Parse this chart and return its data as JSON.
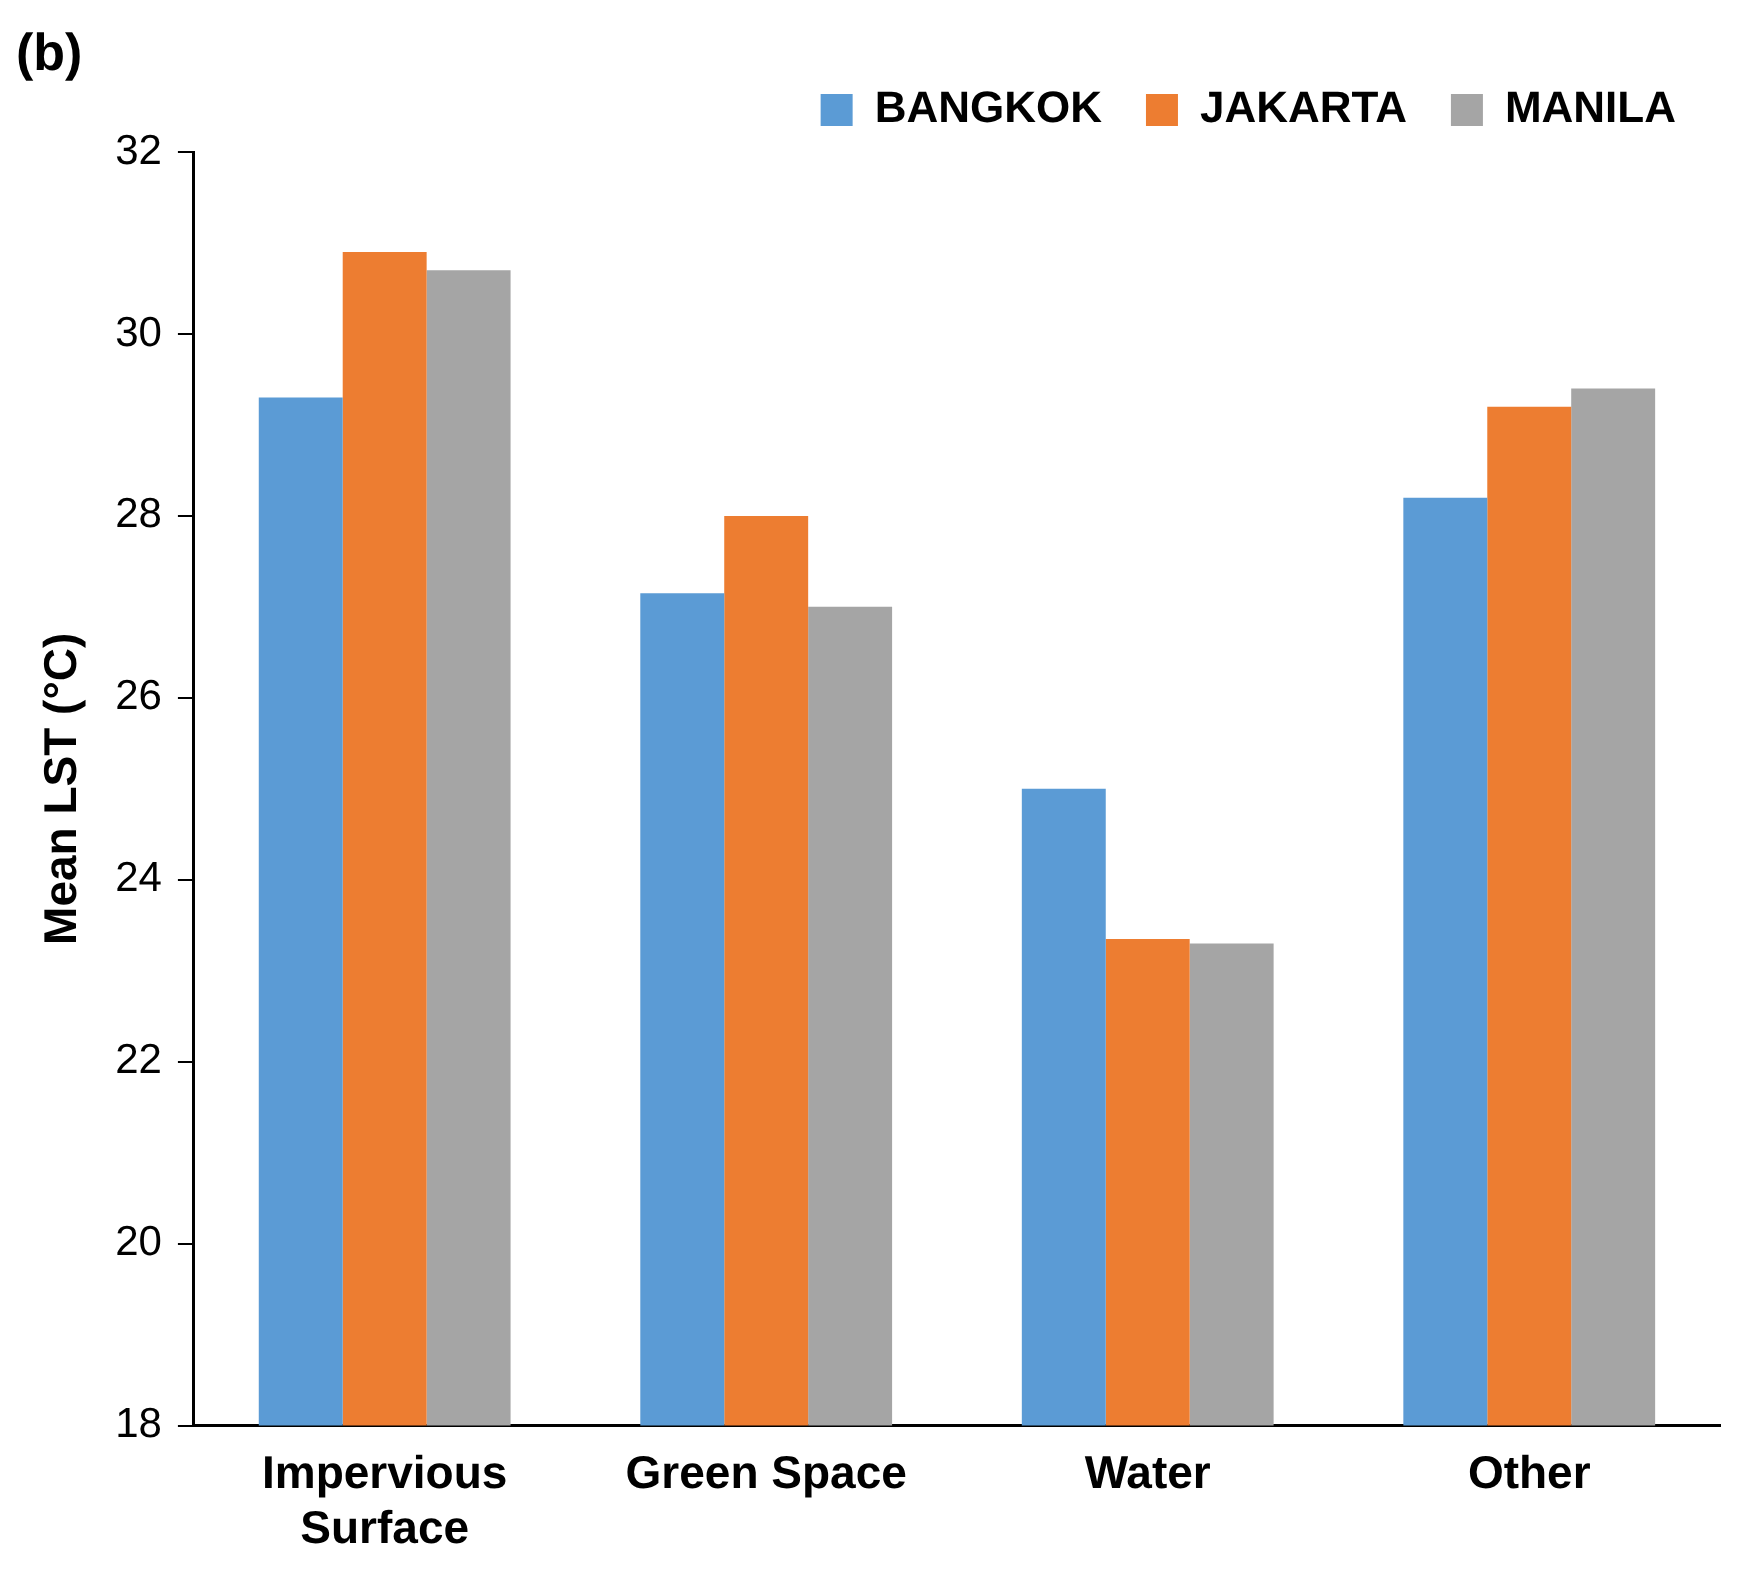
{
  "chart_data": {
    "type": "bar",
    "title": "(b)",
    "ylabel": "Mean LST (°C)",
    "categories": [
      "Impervious Surface",
      "Green Space",
      "Water",
      "Other"
    ],
    "series": [
      {
        "name": "BANGKOK",
        "color": "#5b9bd5",
        "values": [
          29.3,
          27.15,
          25.0,
          28.2
        ]
      },
      {
        "name": "JAKARTA",
        "color": "#ed7d31",
        "values": [
          30.9,
          28.0,
          23.35,
          29.2
        ]
      },
      {
        "name": "MANILA",
        "color": "#a5a5a5",
        "values": [
          30.7,
          27.0,
          23.3,
          29.4
        ]
      }
    ],
    "ylim": [
      18,
      32
    ],
    "yticks": [
      18,
      20,
      22,
      24,
      26,
      28,
      30,
      32
    ],
    "grid": false,
    "legend": "top right"
  }
}
